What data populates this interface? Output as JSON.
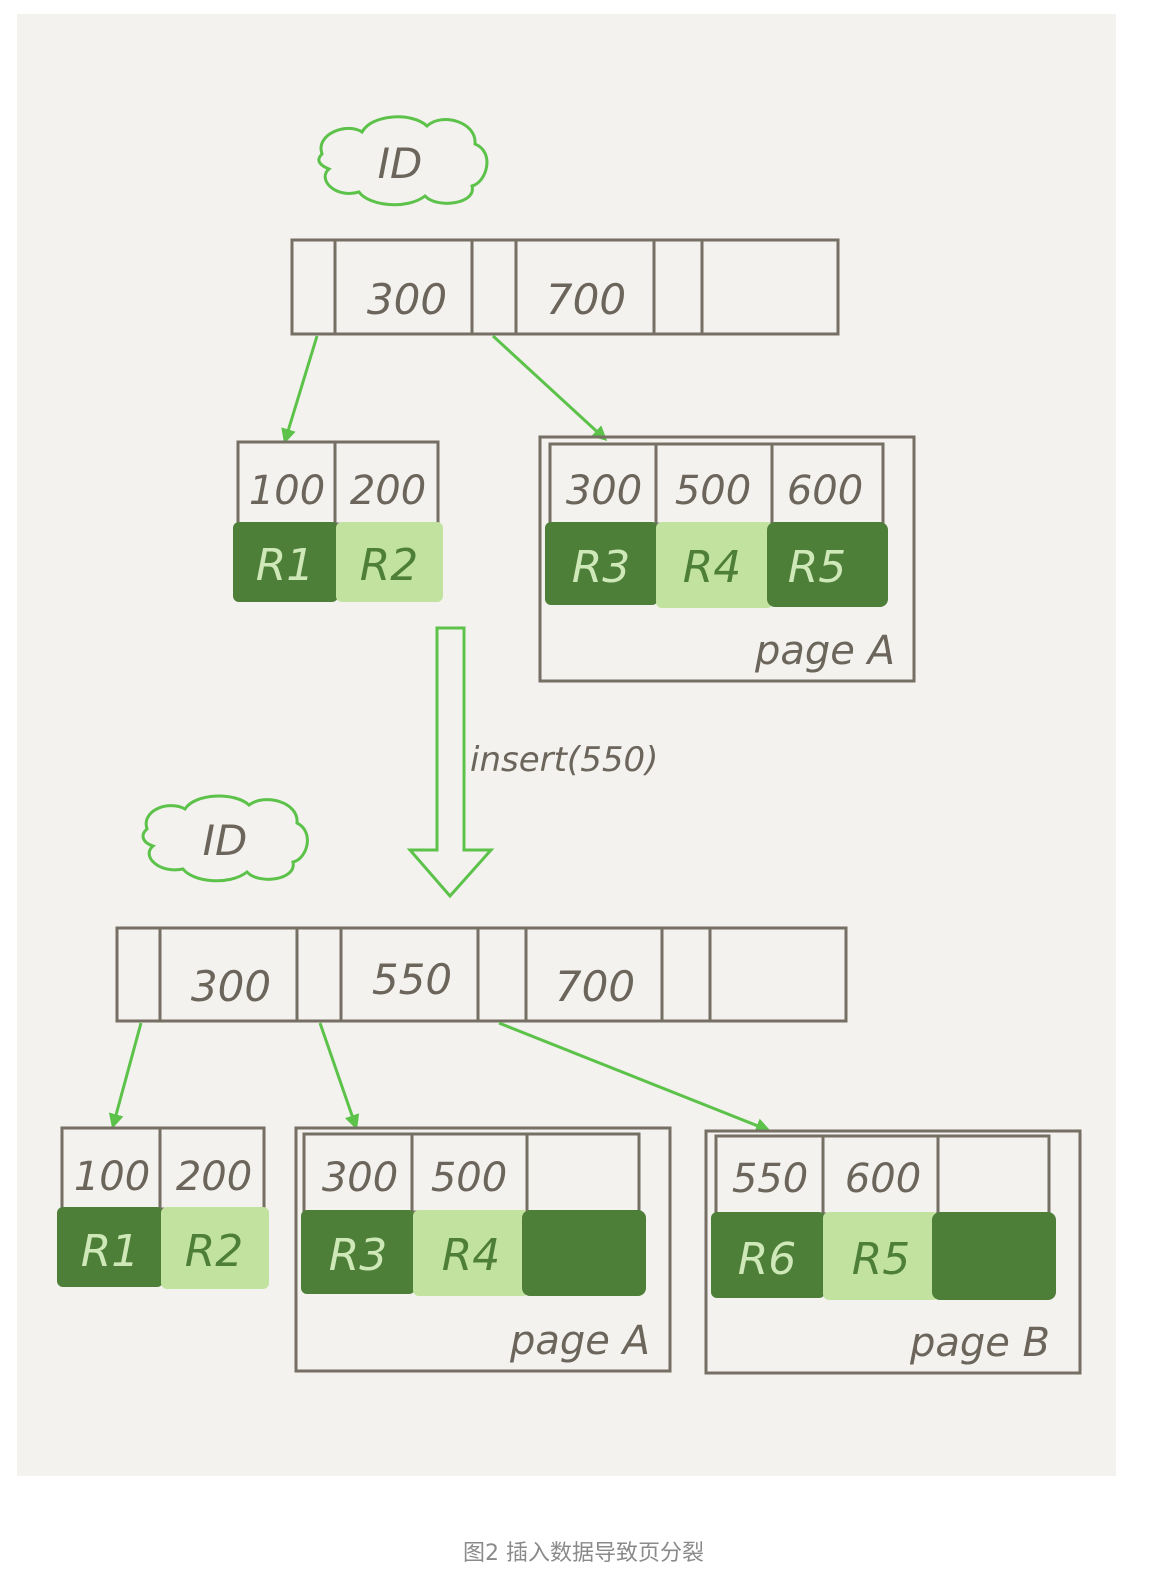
{
  "top": {
    "root_label": "ID",
    "root_keys": [
      "300",
      "700"
    ],
    "leaf1": {
      "keys": [
        "100",
        "200"
      ],
      "records": [
        "R1",
        "R2"
      ]
    },
    "leaf2": {
      "keys": [
        "300",
        "500",
        "600"
      ],
      "records": [
        "R3",
        "R4",
        "R5"
      ],
      "page_label": "page A"
    }
  },
  "operation": "insert(550)",
  "bottom": {
    "root_label": "ID",
    "root_keys": [
      "300",
      "550",
      "700"
    ],
    "leaf1": {
      "keys": [
        "100",
        "200"
      ],
      "records": [
        "R1",
        "R2"
      ]
    },
    "leaf2": {
      "keys": [
        "300",
        "500"
      ],
      "records": [
        "R3",
        "R4"
      ],
      "page_label": "page A"
    },
    "leaf3": {
      "keys": [
        "550",
        "600"
      ],
      "records": [
        "R6",
        "R5"
      ],
      "page_label": "page B"
    }
  },
  "caption": "图2 插入数据导致页分裂",
  "colors": {
    "background": "#f3f2ee",
    "line": "#756f64",
    "arrow": "#5cc24a",
    "dark_record": "#4e7f39",
    "light_record": "#c2e39f"
  }
}
